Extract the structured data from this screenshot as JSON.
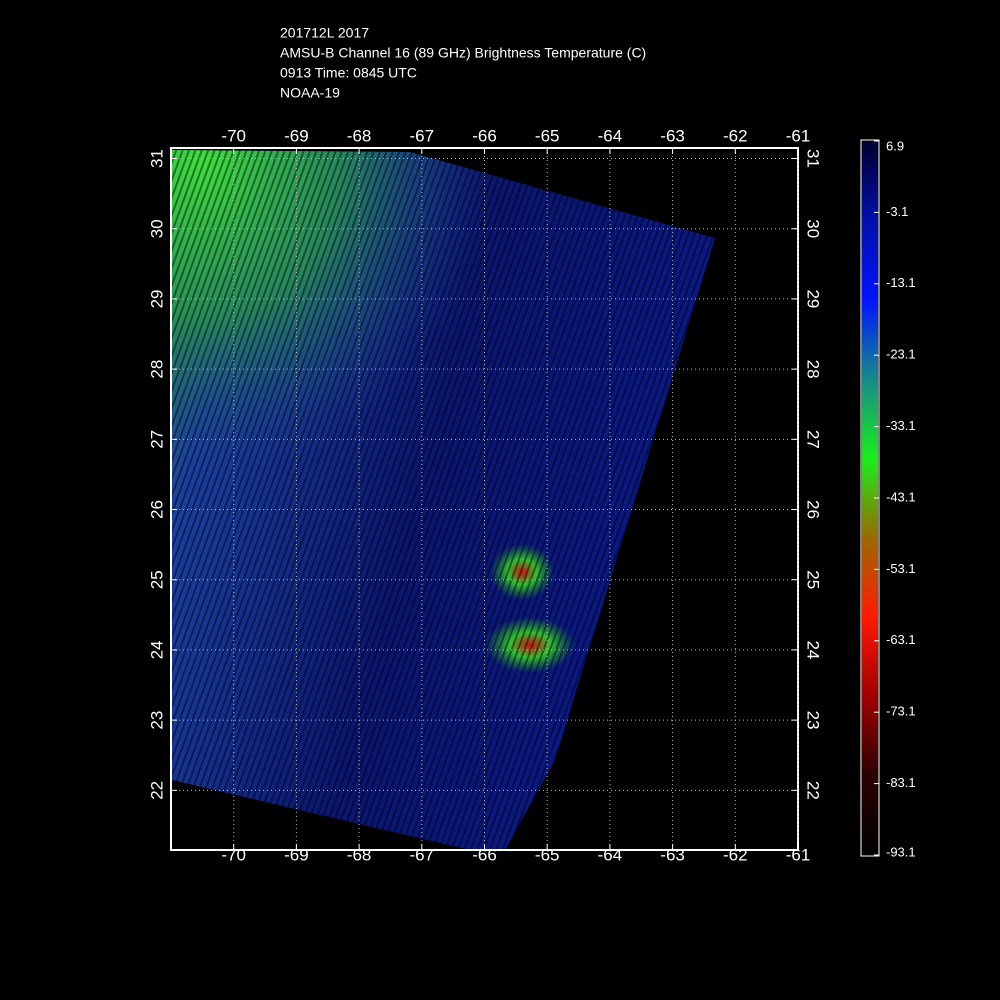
{
  "chart_data": {
    "type": "map",
    "title_lines": [
      "201712L 2017",
      "AMSU-B Channel 16 (89 GHz) Brightness Temperature (C)",
      "0913 Time: 0845 UTC",
      "NOAA-19"
    ],
    "xlim": [
      -71,
      -61
    ],
    "xticks": [
      -70,
      -69,
      -68,
      -67,
      -66,
      -65,
      -64,
      -63,
      -62,
      -61
    ],
    "ylim": [
      21.15,
      31.15
    ],
    "yticks": [
      22,
      23,
      24,
      25,
      26,
      27,
      28,
      29,
      30,
      31
    ],
    "grid": true,
    "colorbar": {
      "lim": [
        -93.1,
        6.9
      ],
      "ticks": [
        6.9,
        -3.1,
        -13.1,
        -23.1,
        -33.1,
        -43.1,
        -53.1,
        -63.1,
        -73.1,
        -83.1,
        -93.1
      ],
      "colors": [
        "#000000",
        "#2a0000",
        "#a00000",
        "#ff1a00",
        "#9a6a00",
        "#1aee1a",
        "#178a8a",
        "#0014ff",
        "#0010aa",
        "#000030"
      ]
    }
  }
}
